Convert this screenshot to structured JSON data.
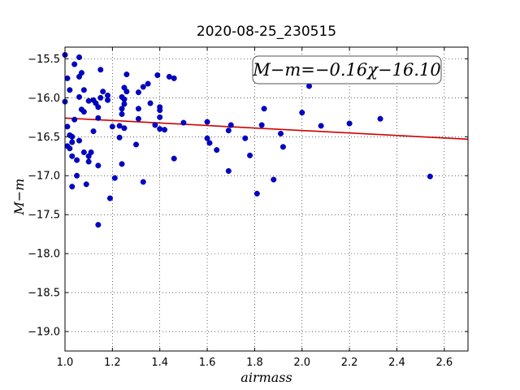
{
  "chart_data": {
    "type": "scatter",
    "title": "2020-08-25_230515",
    "xlabel": "airmass",
    "ylabel": "M−m",
    "xlim": [
      1.0,
      2.7
    ],
    "ylim": [
      -19.25,
      -15.35
    ],
    "x_ticks": [
      1.0,
      1.2,
      1.4,
      1.6,
      1.8,
      2.0,
      2.2,
      2.4,
      2.6
    ],
    "x_tick_labels": [
      "1.0",
      "1.2",
      "1.4",
      "1.6",
      "1.8",
      "2.0",
      "2.2",
      "2.4",
      "2.6"
    ],
    "y_ticks": [
      -15.5,
      -16.0,
      -16.5,
      -17.0,
      -17.5,
      -18.0,
      -18.5,
      -19.0
    ],
    "y_tick_labels": [
      "−15.5",
      "−16.0",
      "−16.5",
      "−17.0",
      "−17.5",
      "−18.0",
      "−18.5",
      "−19.0"
    ],
    "grid": true,
    "annotation": "M−m=−0.16χ−16.10",
    "fit": {
      "slope": -0.16,
      "intercept": -16.1,
      "color": "#d00000"
    },
    "point_color": "#0000cc",
    "points": [
      [
        1.0,
        -15.45
      ],
      [
        1.0,
        -16.05
      ],
      [
        1.01,
        -15.75
      ],
      [
        1.01,
        -16.37
      ],
      [
        1.01,
        -16.62
      ],
      [
        1.02,
        -16.65
      ],
      [
        1.02,
        -15.9
      ],
      [
        1.02,
        -16.48
      ],
      [
        1.03,
        -16.5
      ],
      [
        1.03,
        -16.75
      ],
      [
        1.03,
        -17.14
      ],
      [
        1.03,
        -16.57
      ],
      [
        1.04,
        -16.28
      ],
      [
        1.04,
        -15.57
      ],
      [
        1.05,
        -16.8
      ],
      [
        1.05,
        -17.0
      ],
      [
        1.06,
        -15.48
      ],
      [
        1.06,
        -15.73
      ],
      [
        1.06,
        -15.99
      ],
      [
        1.06,
        -16.55
      ],
      [
        1.07,
        -15.68
      ],
      [
        1.07,
        -16.15
      ],
      [
        1.08,
        -15.9
      ],
      [
        1.08,
        -16.18
      ],
      [
        1.08,
        -16.7
      ],
      [
        1.09,
        -17.11
      ],
      [
        1.1,
        -16.75
      ],
      [
        1.1,
        -16.82
      ],
      [
        1.1,
        -16.04
      ],
      [
        1.11,
        -16.7
      ],
      [
        1.12,
        -16.43
      ],
      [
        1.12,
        -16.03
      ],
      [
        1.13,
        -16.07
      ],
      [
        1.14,
        -16.12
      ],
      [
        1.14,
        -16.26
      ],
      [
        1.14,
        -16.87
      ],
      [
        1.14,
        -17.63
      ],
      [
        1.15,
        -16.0
      ],
      [
        1.15,
        -15.64
      ],
      [
        1.16,
        -15.92
      ],
      [
        1.18,
        -15.97
      ],
      [
        1.18,
        -16.03
      ],
      [
        1.19,
        -17.29
      ],
      [
        1.2,
        -16.37
      ],
      [
        1.21,
        -17.03
      ],
      [
        1.23,
        -16.51
      ],
      [
        1.23,
        -16.36
      ],
      [
        1.24,
        -16.21
      ],
      [
        1.24,
        -16.85
      ],
      [
        1.24,
        -15.99
      ],
      [
        1.24,
        -16.14
      ],
      [
        1.25,
        -16.08
      ],
      [
        1.25,
        -16.39
      ],
      [
        1.25,
        -16.02
      ],
      [
        1.25,
        -15.87
      ],
      [
        1.26,
        -15.92
      ],
      [
        1.26,
        -15.7
      ],
      [
        1.3,
        -16.6
      ],
      [
        1.31,
        -16.27
      ],
      [
        1.31,
        -15.93
      ],
      [
        1.31,
        -16.14
      ],
      [
        1.33,
        -15.86
      ],
      [
        1.33,
        -17.08
      ],
      [
        1.35,
        -15.82
      ],
      [
        1.36,
        -16.07
      ],
      [
        1.38,
        -16.35
      ],
      [
        1.39,
        -15.71
      ],
      [
        1.4,
        -16.12
      ],
      [
        1.4,
        -16.16
      ],
      [
        1.4,
        -16.25
      ],
      [
        1.4,
        -16.4
      ],
      [
        1.42,
        -16.41
      ],
      [
        1.44,
        -15.73
      ],
      [
        1.46,
        -15.75
      ],
      [
        1.46,
        -16.78
      ],
      [
        1.5,
        -16.32
      ],
      [
        1.6,
        -16.31
      ],
      [
        1.6,
        -16.52
      ],
      [
        1.61,
        -16.58
      ],
      [
        1.64,
        -16.67
      ],
      [
        1.69,
        -16.94
      ],
      [
        1.69,
        -16.42
      ],
      [
        1.7,
        -16.35
      ],
      [
        1.76,
        -16.52
      ],
      [
        1.78,
        -16.74
      ],
      [
        1.81,
        -17.23
      ],
      [
        1.83,
        -16.35
      ],
      [
        1.84,
        -16.14
      ],
      [
        1.88,
        -17.05
      ],
      [
        1.91,
        -16.46
      ],
      [
        1.92,
        -16.63
      ],
      [
        2.0,
        -16.19
      ],
      [
        2.03,
        -15.85
      ],
      [
        2.08,
        -16.36
      ],
      [
        2.2,
        -16.33
      ],
      [
        2.33,
        -16.27
      ],
      [
        2.54,
        -17.01
      ]
    ]
  }
}
